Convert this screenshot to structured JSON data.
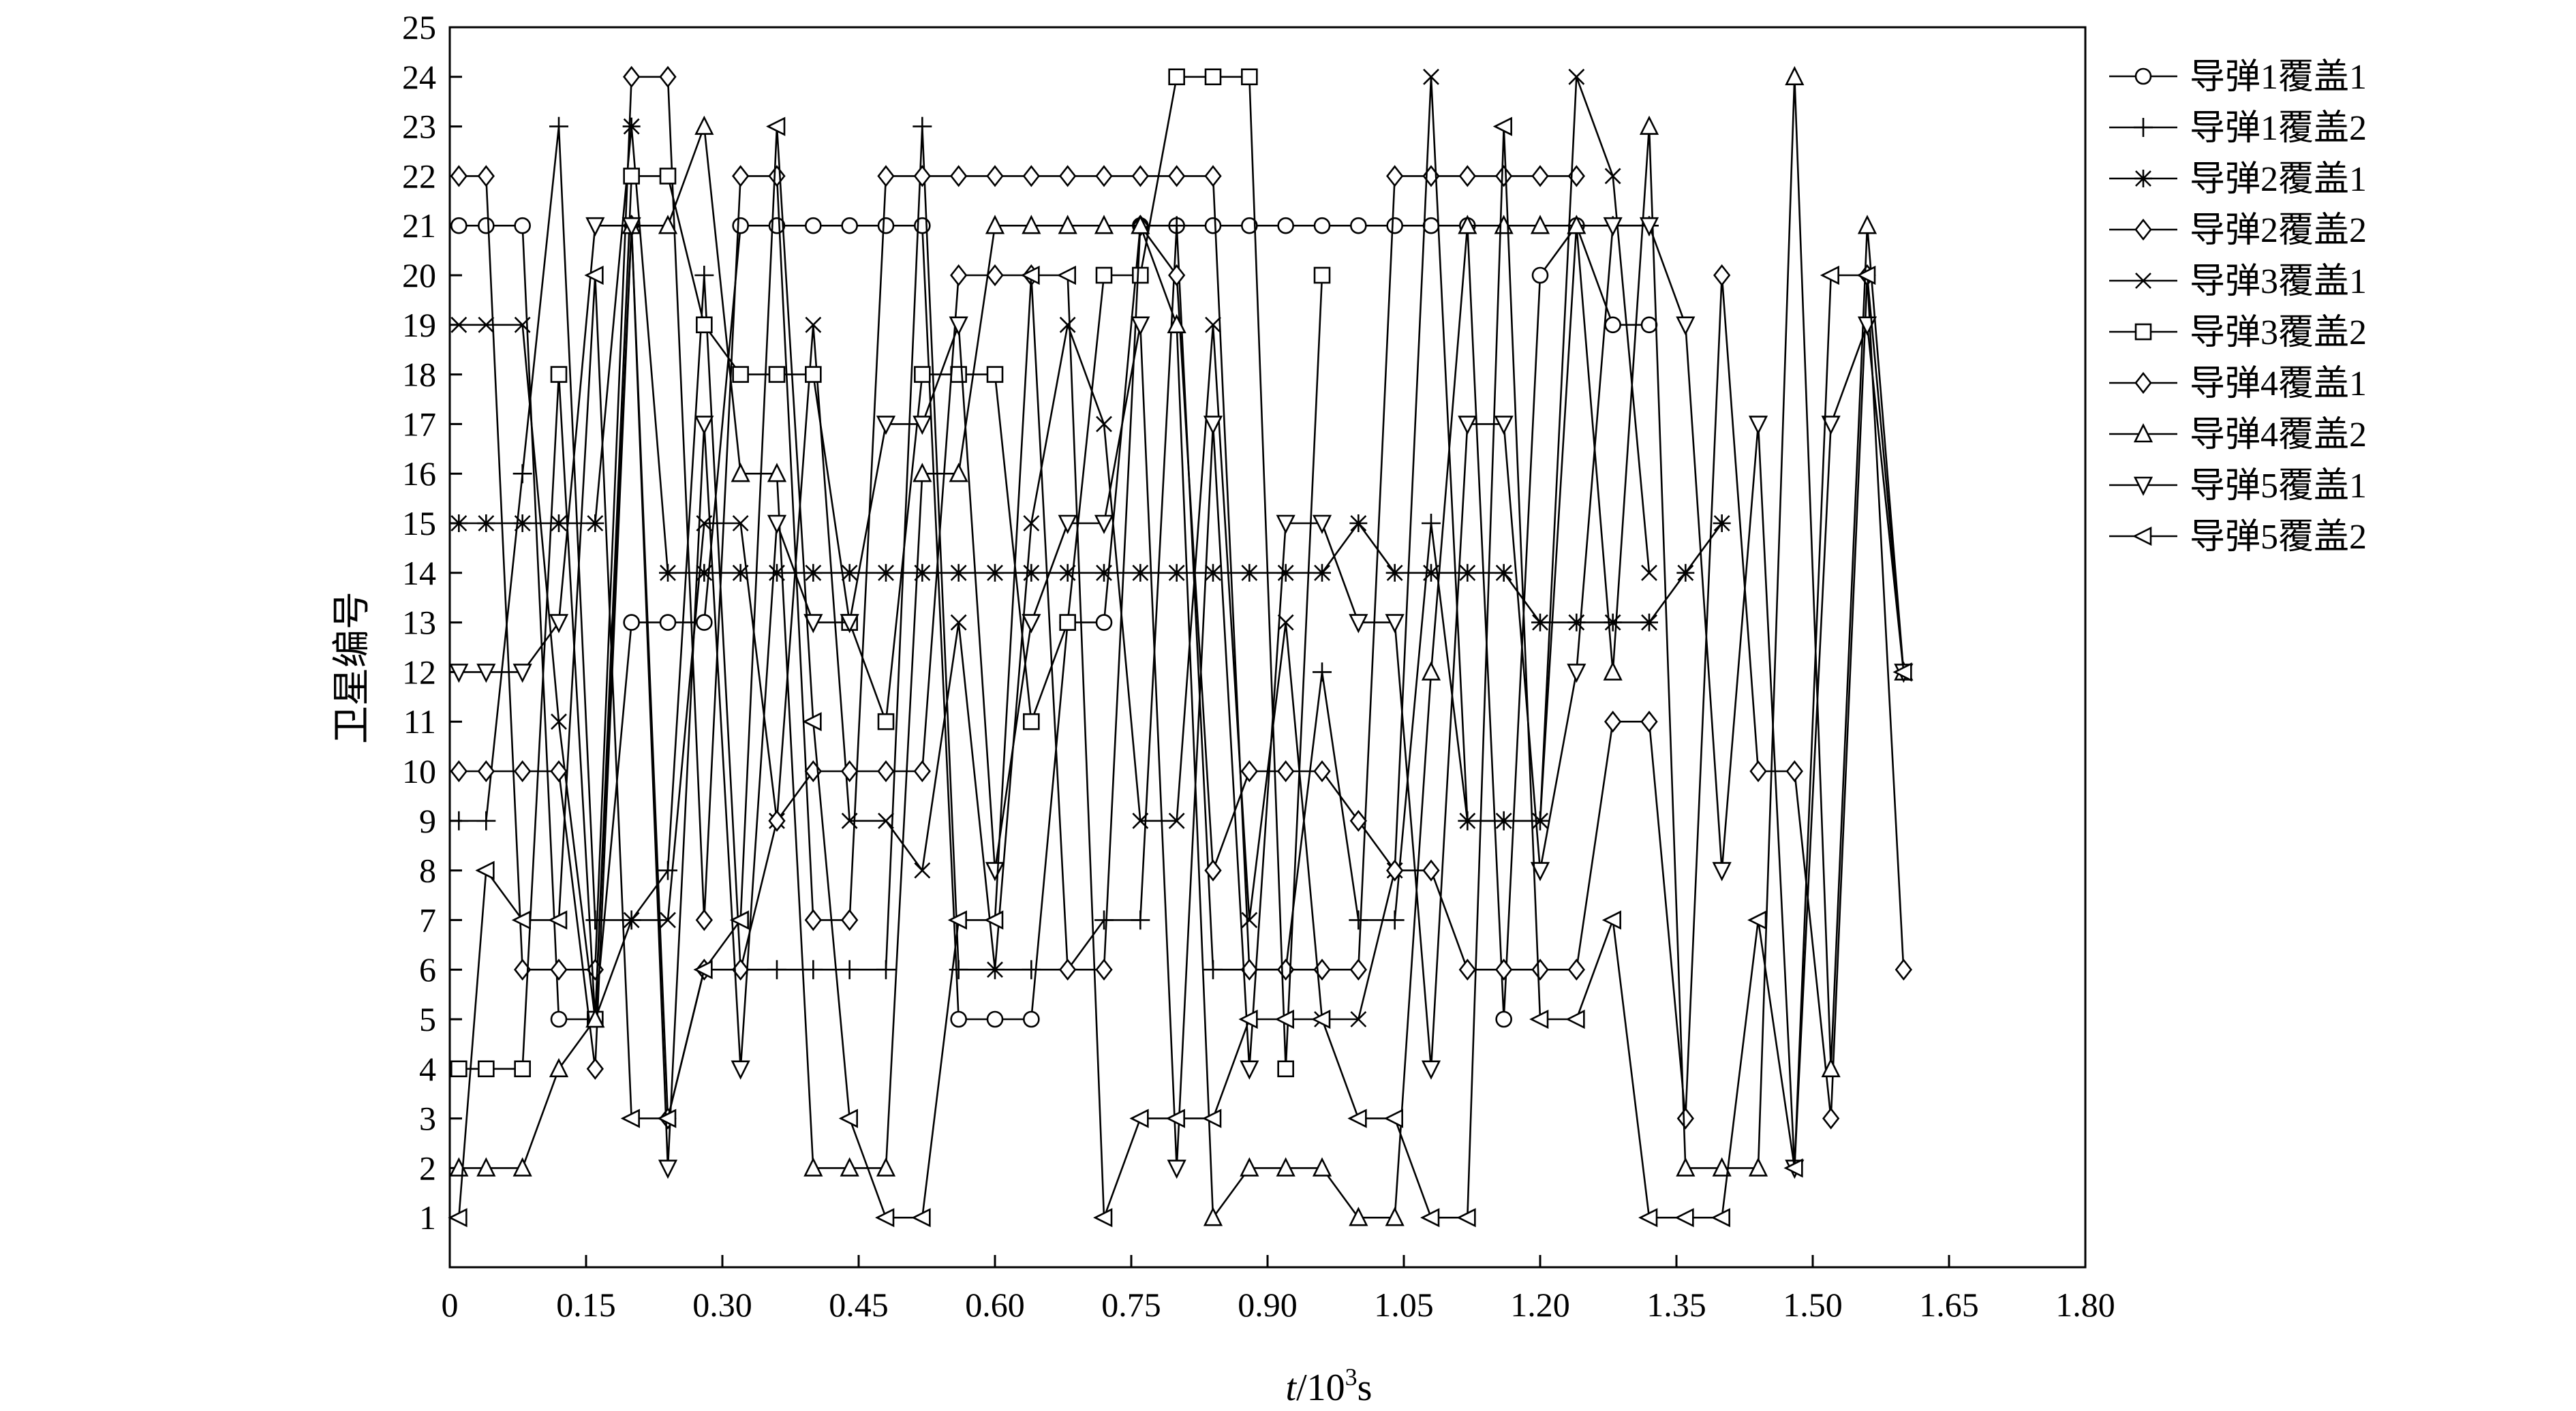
{
  "chart_data": {
    "type": "line",
    "xlabel_italic": "t",
    "xlabel_rest": "/10",
    "xlabel_sup": "3",
    "xlabel_unit": "s",
    "ylabel": "卫星编号",
    "xlim": [
      0,
      1.8
    ],
    "ylim": [
      0,
      25
    ],
    "xticks": [
      "0",
      "0.15",
      "0.30",
      "0.45",
      "0.60",
      "0.75",
      "0.90",
      "1.05",
      "1.20",
      "1.35",
      "1.50",
      "1.65",
      "1.80"
    ],
    "yticks": [
      "1",
      "2",
      "3",
      "4",
      "5",
      "6",
      "7",
      "8",
      "9",
      "10",
      "11",
      "12",
      "13",
      "14",
      "15",
      "16",
      "17",
      "18",
      "19",
      "20",
      "21",
      "22",
      "23",
      "24",
      "25"
    ],
    "grid": false,
    "legend_position": "top-right",
    "series": [
      {
        "name": "导弹1覆盖1",
        "marker": "circle",
        "x": [
          0.01,
          0.04,
          0.08,
          0.12,
          0.16,
          0.2,
          0.24,
          0.28,
          0.32,
          0.36,
          0.4,
          0.44,
          0.48,
          0.52,
          0.56,
          0.6,
          0.64,
          0.68,
          0.72,
          0.76,
          0.8,
          0.84,
          0.88,
          0.92,
          0.96,
          1.0,
          1.04,
          1.08,
          1.12,
          1.16,
          1.2,
          1.24,
          1.28,
          1.32
        ],
        "y": [
          21,
          21,
          21,
          5,
          5,
          13,
          13,
          13,
          21,
          21,
          21,
          21,
          21,
          21,
          5,
          5,
          5,
          13,
          13,
          21,
          21,
          21,
          21,
          21,
          21,
          21,
          21,
          21,
          21,
          5,
          20,
          21,
          19,
          19
        ]
      },
      {
        "name": "导弹1覆盖2",
        "marker": "plus",
        "x": [
          0.01,
          0.04,
          0.08,
          0.12,
          0.16,
          0.2,
          0.24,
          0.28,
          0.32,
          0.36,
          0.4,
          0.44,
          0.48,
          0.52,
          0.56,
          0.6,
          0.64,
          0.68,
          0.72,
          0.76,
          0.8,
          0.84,
          0.88,
          0.92,
          0.96,
          1.0,
          1.04,
          1.08,
          1.12,
          1.16,
          1.2,
          1.24,
          1.28,
          1.32
        ],
        "y": [
          9,
          9,
          16,
          23,
          7,
          7,
          8,
          20,
          6,
          6,
          6,
          6,
          6,
          23,
          6,
          6,
          6,
          6,
          7,
          7,
          21,
          6,
          6,
          6,
          12,
          7,
          7,
          15,
          9,
          9,
          9,
          21,
          21,
          21
        ]
      },
      {
        "name": "导弹2覆盖1",
        "marker": "asterisk",
        "x": [
          0.01,
          0.04,
          0.08,
          0.12,
          0.16,
          0.2,
          0.24,
          0.28,
          0.32,
          0.36,
          0.4,
          0.44,
          0.48,
          0.52,
          0.56,
          0.6,
          0.64,
          0.68,
          0.72,
          0.76,
          0.8,
          0.84,
          0.88,
          0.92,
          0.96,
          1.0,
          1.04,
          1.08,
          1.12,
          1.16,
          1.2,
          1.24,
          1.28,
          1.32,
          1.36,
          1.4
        ],
        "y": [
          15,
          15,
          15,
          15,
          15,
          23,
          14,
          14,
          14,
          14,
          14,
          14,
          14,
          14,
          14,
          14,
          14,
          14,
          14,
          14,
          14,
          14,
          14,
          14,
          14,
          15,
          14,
          14,
          14,
          14,
          13,
          13,
          13,
          13,
          14,
          15
        ]
      },
      {
        "name": "导弹2覆盖2",
        "marker": "diamond",
        "x": [
          0.01,
          0.04,
          0.08,
          0.12,
          0.16,
          0.2,
          0.24,
          0.28,
          0.32,
          0.36,
          0.4,
          0.44,
          0.48,
          0.52,
          0.56,
          0.6,
          0.64,
          0.68,
          0.72,
          0.76,
          0.8,
          0.84,
          0.88,
          0.92,
          0.96,
          1.0,
          1.04,
          1.08,
          1.12,
          1.16,
          1.2,
          1.24
        ],
        "y": [
          22,
          22,
          6,
          6,
          6,
          24,
          24,
          7,
          22,
          22,
          7,
          7,
          22,
          22,
          22,
          22,
          22,
          22,
          22,
          22,
          22,
          22,
          6,
          6,
          6,
          6,
          22,
          22,
          22,
          22,
          22,
          22
        ]
      },
      {
        "name": "导弹3覆盖1",
        "marker": "x",
        "x": [
          0.01,
          0.04,
          0.08,
          0.12,
          0.16,
          0.2,
          0.24,
          0.28,
          0.32,
          0.36,
          0.4,
          0.44,
          0.48,
          0.52,
          0.56,
          0.6,
          0.64,
          0.68,
          0.72,
          0.76,
          0.8,
          0.84,
          0.88,
          0.92,
          0.96,
          1.0,
          1.04,
          1.08,
          1.12,
          1.16,
          1.2,
          1.24,
          1.28,
          1.32
        ],
        "y": [
          19,
          19,
          19,
          11,
          5,
          7,
          7,
          15,
          15,
          9,
          19,
          9,
          9,
          8,
          13,
          6,
          15,
          19,
          17,
          9,
          9,
          19,
          7,
          13,
          5,
          5,
          8,
          24,
          9,
          9,
          9,
          24,
          22,
          14
        ]
      },
      {
        "name": "导弹3覆盖2",
        "marker": "square",
        "x": [
          0.01,
          0.04,
          0.08,
          0.12,
          0.16,
          0.2,
          0.24,
          0.28,
          0.32,
          0.36,
          0.4,
          0.44,
          0.48,
          0.52,
          0.56,
          0.6,
          0.64,
          0.68,
          0.72,
          0.76,
          0.8,
          0.84,
          0.88,
          0.92,
          0.96
        ],
        "y": [
          4,
          4,
          4,
          18,
          5,
          22,
          22,
          19,
          18,
          18,
          18,
          13,
          11,
          18,
          18,
          18,
          11,
          13,
          20,
          20,
          24,
          24,
          24,
          4,
          20
        ]
      },
      {
        "name": "导弹4覆盖1",
        "marker": "diamond",
        "x": [
          0.01,
          0.04,
          0.08,
          0.12,
          0.16,
          0.2,
          0.24,
          0.28,
          0.32,
          0.36,
          0.4,
          0.44,
          0.48,
          0.52,
          0.56,
          0.6,
          0.64,
          0.68,
          0.72,
          0.76,
          0.8,
          0.84,
          0.88,
          0.92,
          0.96,
          1.0,
          1.04,
          1.08,
          1.12,
          1.16,
          1.2,
          1.24,
          1.28,
          1.32,
          1.36,
          1.4,
          1.44,
          1.48,
          1.52,
          1.56,
          1.6
        ],
        "y": [
          10,
          10,
          10,
          10,
          4,
          21,
          3,
          6,
          6,
          9,
          10,
          10,
          10,
          10,
          20,
          20,
          20,
          6,
          6,
          21,
          20,
          8,
          10,
          10,
          10,
          9,
          8,
          8,
          6,
          6,
          6,
          6,
          11,
          11,
          3,
          20,
          10,
          10,
          3,
          20,
          6
        ]
      },
      {
        "name": "导弹4覆盖2",
        "marker": "triangle-up",
        "x": [
          0.01,
          0.04,
          0.08,
          0.12,
          0.16,
          0.2,
          0.24,
          0.28,
          0.32,
          0.36,
          0.4,
          0.44,
          0.48,
          0.52,
          0.56,
          0.6,
          0.64,
          0.68,
          0.72,
          0.76,
          0.8,
          0.84,
          0.88,
          0.92,
          0.96,
          1.0,
          1.04,
          1.08,
          1.12,
          1.16,
          1.2,
          1.24,
          1.28,
          1.32,
          1.36,
          1.4,
          1.44,
          1.48,
          1.52,
          1.56,
          1.6
        ],
        "y": [
          2,
          2,
          2,
          4,
          5,
          21,
          21,
          23,
          16,
          16,
          2,
          2,
          2,
          16,
          16,
          21,
          21,
          21,
          21,
          21,
          19,
          1,
          2,
          2,
          2,
          1,
          1,
          12,
          21,
          21,
          21,
          21,
          12,
          23,
          2,
          2,
          2,
          24,
          4,
          21,
          12
        ]
      },
      {
        "name": "导弹5覆盖1",
        "marker": "triangle-down",
        "x": [
          0.01,
          0.04,
          0.08,
          0.12,
          0.16,
          0.2,
          0.24,
          0.28,
          0.32,
          0.36,
          0.4,
          0.44,
          0.48,
          0.52,
          0.56,
          0.6,
          0.64,
          0.68,
          0.72,
          0.76,
          0.8,
          0.84,
          0.88,
          0.92,
          0.96,
          1.0,
          1.04,
          1.08,
          1.12,
          1.16,
          1.2,
          1.24,
          1.28,
          1.32,
          1.36,
          1.4,
          1.44,
          1.48,
          1.52,
          1.56,
          1.6
        ],
        "y": [
          12,
          12,
          12,
          13,
          21,
          21,
          2,
          17,
          4,
          15,
          13,
          13,
          17,
          17,
          19,
          8,
          13,
          15,
          15,
          19,
          2,
          17,
          4,
          15,
          15,
          13,
          13,
          4,
          17,
          17,
          8,
          12,
          21,
          21,
          19,
          8,
          17,
          2,
          17,
          19,
          12
        ]
      },
      {
        "name": "导弹5覆盖2",
        "marker": "triangle-left",
        "x": [
          0.01,
          0.04,
          0.08,
          0.12,
          0.16,
          0.2,
          0.24,
          0.28,
          0.32,
          0.36,
          0.4,
          0.44,
          0.48,
          0.52,
          0.56,
          0.6,
          0.64,
          0.68,
          0.72,
          0.76,
          0.8,
          0.84,
          0.88,
          0.92,
          0.96,
          1.0,
          1.04,
          1.08,
          1.12,
          1.16,
          1.2,
          1.24,
          1.28,
          1.32,
          1.36,
          1.4,
          1.44,
          1.48,
          1.52,
          1.56,
          1.6
        ],
        "y": [
          1,
          8,
          7,
          7,
          20,
          3,
          3,
          6,
          7,
          23,
          11,
          3,
          1,
          1,
          7,
          7,
          20,
          20,
          1,
          3,
          3,
          3,
          5,
          5,
          5,
          3,
          3,
          1,
          1,
          23,
          5,
          5,
          7,
          1,
          1,
          1,
          7,
          2,
          20,
          20,
          12
        ]
      }
    ]
  }
}
